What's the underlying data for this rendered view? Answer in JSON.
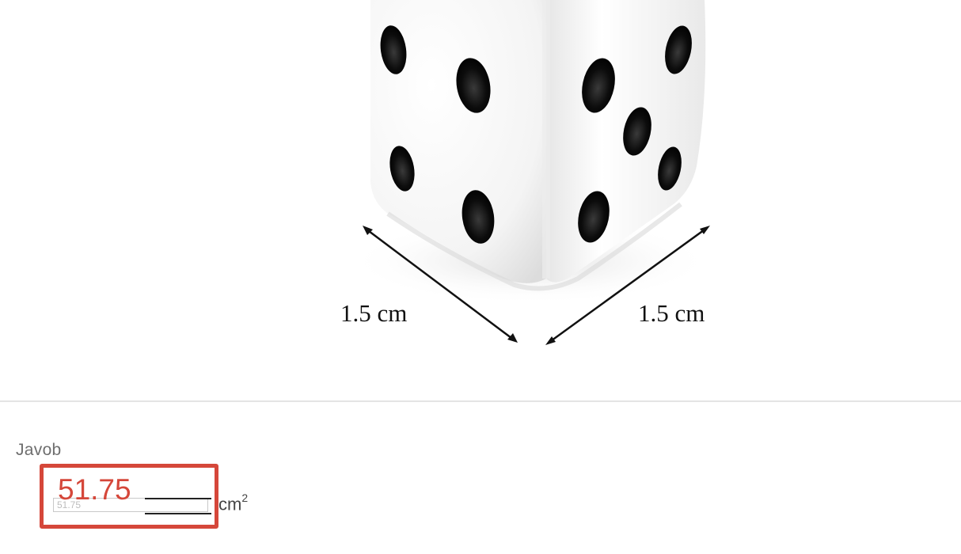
{
  "figure": {
    "image": "dice-icon",
    "left_dimension": "1.5 cm",
    "right_dimension": "1.5 cm"
  },
  "answer": {
    "label": "Javob",
    "entered_value": "51.75",
    "field_value": "51.75",
    "unit": "cm",
    "unit_exponent": "2",
    "highlight_color": "#d5473a"
  }
}
